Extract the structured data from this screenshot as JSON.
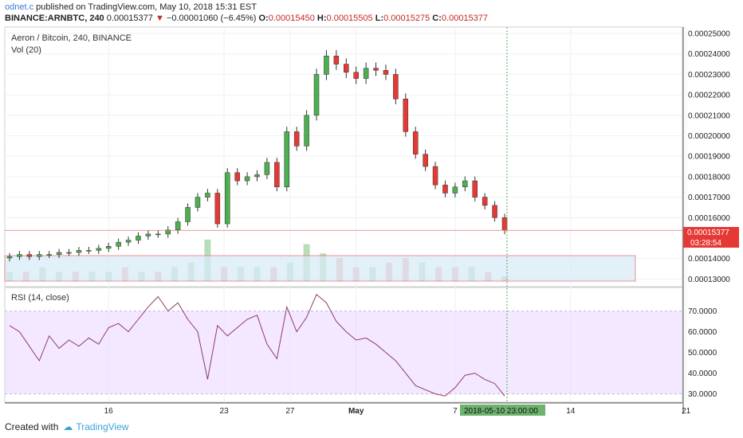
{
  "header": {
    "author": "odnet.c",
    "published_text": "published on TradingView.com, May 10, 2018 15:31 EST",
    "symbol": "BINANCE:ARNBTC, 240",
    "last": "0.00015377",
    "change": "−0.00001060 (−6.45%)",
    "o_label": "O:",
    "o_value": "0.00015450",
    "h_label": "H:",
    "h_value": "0.00015505",
    "l_label": "L:",
    "l_value": "0.00015275",
    "c_label": "C:",
    "c_value": "0.00015377"
  },
  "main_pane": {
    "title": "Aeron / Bitcoin, 240, BINANCE",
    "volume_label": "Vol (20)",
    "price_tag": "0.00015377",
    "countdown_tag": "03:28:54",
    "up_color": "#4caf50",
    "down_color": "#e53935"
  },
  "rsi_pane": {
    "label": "RSI (14, close)",
    "band_color": "#ead6ff",
    "line_color": "#8e3a6e"
  },
  "cursor_date_tag": "2018-05-10 23:00:00",
  "footer": {
    "created_with": "Created with",
    "brand": "TradingView"
  },
  "chart_data": [
    {
      "type": "line",
      "title": "Aeron / Bitcoin, 240, BINANCE",
      "note_series": "candlestick closes, estimated",
      "y_ticks": [
        "0.00025000",
        "0.00024000",
        "0.00023000",
        "0.00022000",
        "0.00021000",
        "0.00020000",
        "0.00019000",
        "0.00018000",
        "0.00017000",
        "0.00016000",
        "0.00014000",
        "0.00013000"
      ],
      "ylim": [
        0.000129,
        0.0002535
      ],
      "x_ticks": [
        "16",
        "23",
        "27",
        "May",
        "7",
        "14",
        "21"
      ],
      "x_ticks_pos": [
        16,
        23,
        27,
        31,
        37,
        44,
        51
      ],
      "x": [
        10,
        10.6,
        11.2,
        11.8,
        12.4,
        13,
        13.6,
        14.2,
        14.8,
        15.4,
        16,
        16.6,
        17.2,
        17.8,
        18.4,
        19,
        19.6,
        20.2,
        20.8,
        21.4,
        22,
        22.6,
        23.2,
        23.8,
        24.4,
        25,
        25.6,
        26.2,
        26.8,
        27.4,
        28,
        28.6,
        29.2,
        29.8,
        30.4,
        31,
        31.6,
        32.2,
        32.8,
        33.4,
        34,
        34.6,
        35.2,
        35.8,
        36.4,
        37,
        37.6,
        38.2,
        38.8,
        39.4,
        40
      ],
      "close": [
        0.000141,
        0.000142,
        0.000141,
        0.000142,
        0.000142,
        0.000143,
        0.000143,
        0.000144,
        0.000144,
        0.000145,
        0.000146,
        0.000148,
        0.000149,
        0.000151,
        0.000152,
        0.000152,
        0.000154,
        0.000158,
        0.000165,
        0.00017,
        0.000172,
        0.000157,
        0.000182,
        0.000178,
        0.00018,
        0.000181,
        0.000187,
        0.000175,
        0.000202,
        0.000195,
        0.00021,
        0.00023,
        0.000239,
        0.000235,
        0.000231,
        0.000228,
        0.000233,
        0.000232,
        0.00023,
        0.000218,
        0.000202,
        0.000191,
        0.000185,
        0.000176,
        0.000172,
        0.000175,
        0.000178,
        0.00017,
        0.000166,
        0.00016,
        0.0001538
      ]
    },
    {
      "type": "bar",
      "title": "Vol (20)",
      "x": [
        10,
        11,
        12,
        13,
        14,
        15,
        16,
        17,
        18,
        19,
        20,
        21,
        22,
        23,
        24,
        25,
        26,
        27,
        28,
        29,
        30,
        31,
        32,
        33,
        34,
        35,
        36,
        37,
        38,
        39,
        40
      ],
      "values": [
        2,
        2,
        3,
        2,
        2,
        2,
        2,
        3,
        2,
        2,
        3,
        4,
        9,
        3,
        3,
        3,
        3,
        4,
        8,
        6,
        5,
        3,
        3,
        4,
        5,
        4,
        3,
        3,
        3,
        2,
        1
      ],
      "colors_up": [
        1,
        0,
        1,
        1,
        0,
        1,
        1,
        0,
        1,
        0,
        1,
        1,
        1,
        0,
        1,
        1,
        0,
        1,
        1,
        1,
        0,
        0,
        1,
        0,
        0,
        1,
        0,
        0,
        1,
        0,
        0
      ]
    },
    {
      "type": "line",
      "title": "RSI (14, close)",
      "y_ticks": [
        "70.0000",
        "60.0000",
        "50.0000",
        "40.0000",
        "30.0000"
      ],
      "ylim": [
        26,
        81
      ],
      "band": [
        30,
        70
      ],
      "x": [
        10,
        10.6,
        11.2,
        11.8,
        12.4,
        13,
        13.6,
        14.2,
        14.8,
        15.4,
        16,
        16.6,
        17.2,
        17.8,
        18.4,
        19,
        19.6,
        20.2,
        20.8,
        21.4,
        22,
        22.6,
        23.2,
        23.8,
        24.4,
        25,
        25.6,
        26.2,
        26.8,
        27.4,
        28,
        28.6,
        29.2,
        29.8,
        30.4,
        31,
        31.6,
        32.2,
        32.8,
        33.4,
        34,
        34.6,
        35.2,
        35.8,
        36.4,
        37,
        37.6,
        38.2,
        38.8,
        39.4,
        40
      ],
      "values": [
        63,
        60,
        53,
        46,
        58,
        52,
        56,
        53,
        57,
        54,
        62,
        64,
        60,
        66,
        72,
        77,
        70,
        74,
        66,
        60,
        37,
        63,
        58,
        62,
        66,
        68,
        54,
        47,
        72,
        60,
        67,
        78,
        74,
        65,
        60,
        56,
        57,
        54,
        50,
        46,
        40,
        34,
        32,
        30,
        29,
        33,
        39,
        40,
        37,
        35,
        29
      ]
    }
  ]
}
